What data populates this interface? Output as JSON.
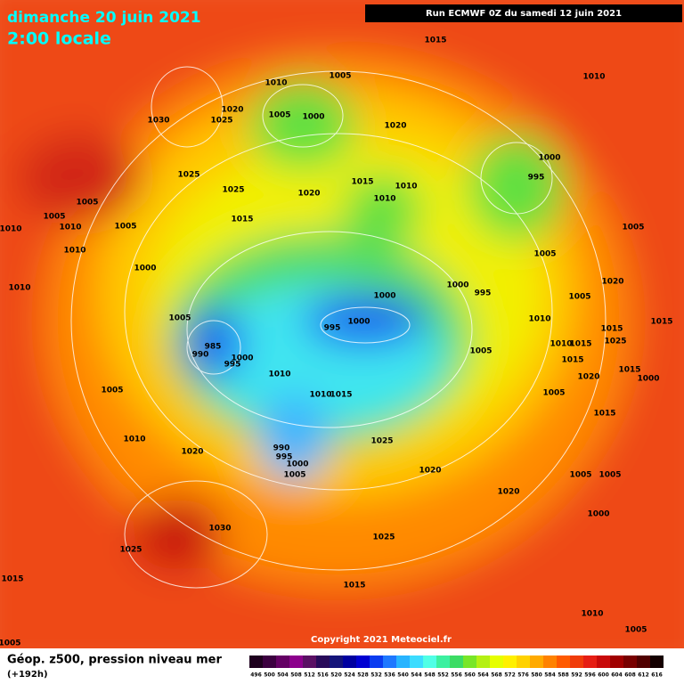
{
  "header": {
    "date": "dimanche 20 juin 2021",
    "time": "2:00 locale",
    "run": "Run ECMWF 0Z du samedi 12 juin 2021"
  },
  "pressure_labels": [
    1015,
    1010,
    1005,
    1010,
    1030,
    1020,
    1025,
    1005,
    1000,
    1020,
    1000,
    995,
    1025,
    1025,
    1015,
    1010,
    1020,
    1010,
    1005,
    1005,
    1015,
    1010,
    1010,
    1005,
    1005,
    1010,
    1005,
    1000,
    1020,
    1000,
    995,
    1000,
    1010,
    1005,
    1005,
    1000,
    995,
    1010,
    1015,
    985,
    990,
    1015,
    1010,
    1015,
    1025,
    1005,
    1000,
    995,
    1015,
    1015,
    1010,
    1020,
    1005,
    1010,
    1015,
    1005,
    1000,
    1015,
    1010,
    1025,
    990,
    995,
    1020,
    1000,
    1005,
    1020,
    1005,
    1005,
    1020,
    1000,
    1030,
    1025,
    1025,
    1015,
    1015,
    1010,
    1005,
    1005
  ],
  "copyright": "Copyright 2021 Meteociel.fr",
  "legend": {
    "title": "Géop. z500, pression niveau mer",
    "lead": "(+192h)",
    "scale": [
      {
        "label": 496,
        "color": "#1e001e"
      },
      {
        "label": 500,
        "color": "#3c0040"
      },
      {
        "label": 504,
        "color": "#640064"
      },
      {
        "label": 508,
        "color": "#8c008c"
      },
      {
        "label": 512,
        "color": "#5a1064"
      },
      {
        "label": 516,
        "color": "#280a5a"
      },
      {
        "label": 520,
        "color": "#14147a"
      },
      {
        "label": 524,
        "color": "#0000a0"
      },
      {
        "label": 528,
        "color": "#0000d2"
      },
      {
        "label": 532,
        "color": "#0a3cf0"
      },
      {
        "label": 536,
        "color": "#1e78ff"
      },
      {
        "label": 540,
        "color": "#28b4ff"
      },
      {
        "label": 544,
        "color": "#3cdcff"
      },
      {
        "label": 548,
        "color": "#50ffe6"
      },
      {
        "label": 552,
        "color": "#3cf0a0"
      },
      {
        "label": 556,
        "color": "#3cdc64"
      },
      {
        "label": 560,
        "color": "#78e628"
      },
      {
        "label": 564,
        "color": "#b4f014"
      },
      {
        "label": 568,
        "color": "#e6ff00"
      },
      {
        "label": 572,
        "color": "#fff000"
      },
      {
        "label": 576,
        "color": "#ffd200"
      },
      {
        "label": 580,
        "color": "#ffaa00"
      },
      {
        "label": 584,
        "color": "#ff8200"
      },
      {
        "label": 588,
        "color": "#ff5a00"
      },
      {
        "label": 592,
        "color": "#f03c0a"
      },
      {
        "label": 596,
        "color": "#e61e14"
      },
      {
        "label": 600,
        "color": "#c80a0a"
      },
      {
        "label": 604,
        "color": "#a00000"
      },
      {
        "label": 608,
        "color": "#780000"
      },
      {
        "label": 612,
        "color": "#500000"
      },
      {
        "label": 616,
        "color": "#140000"
      }
    ]
  }
}
